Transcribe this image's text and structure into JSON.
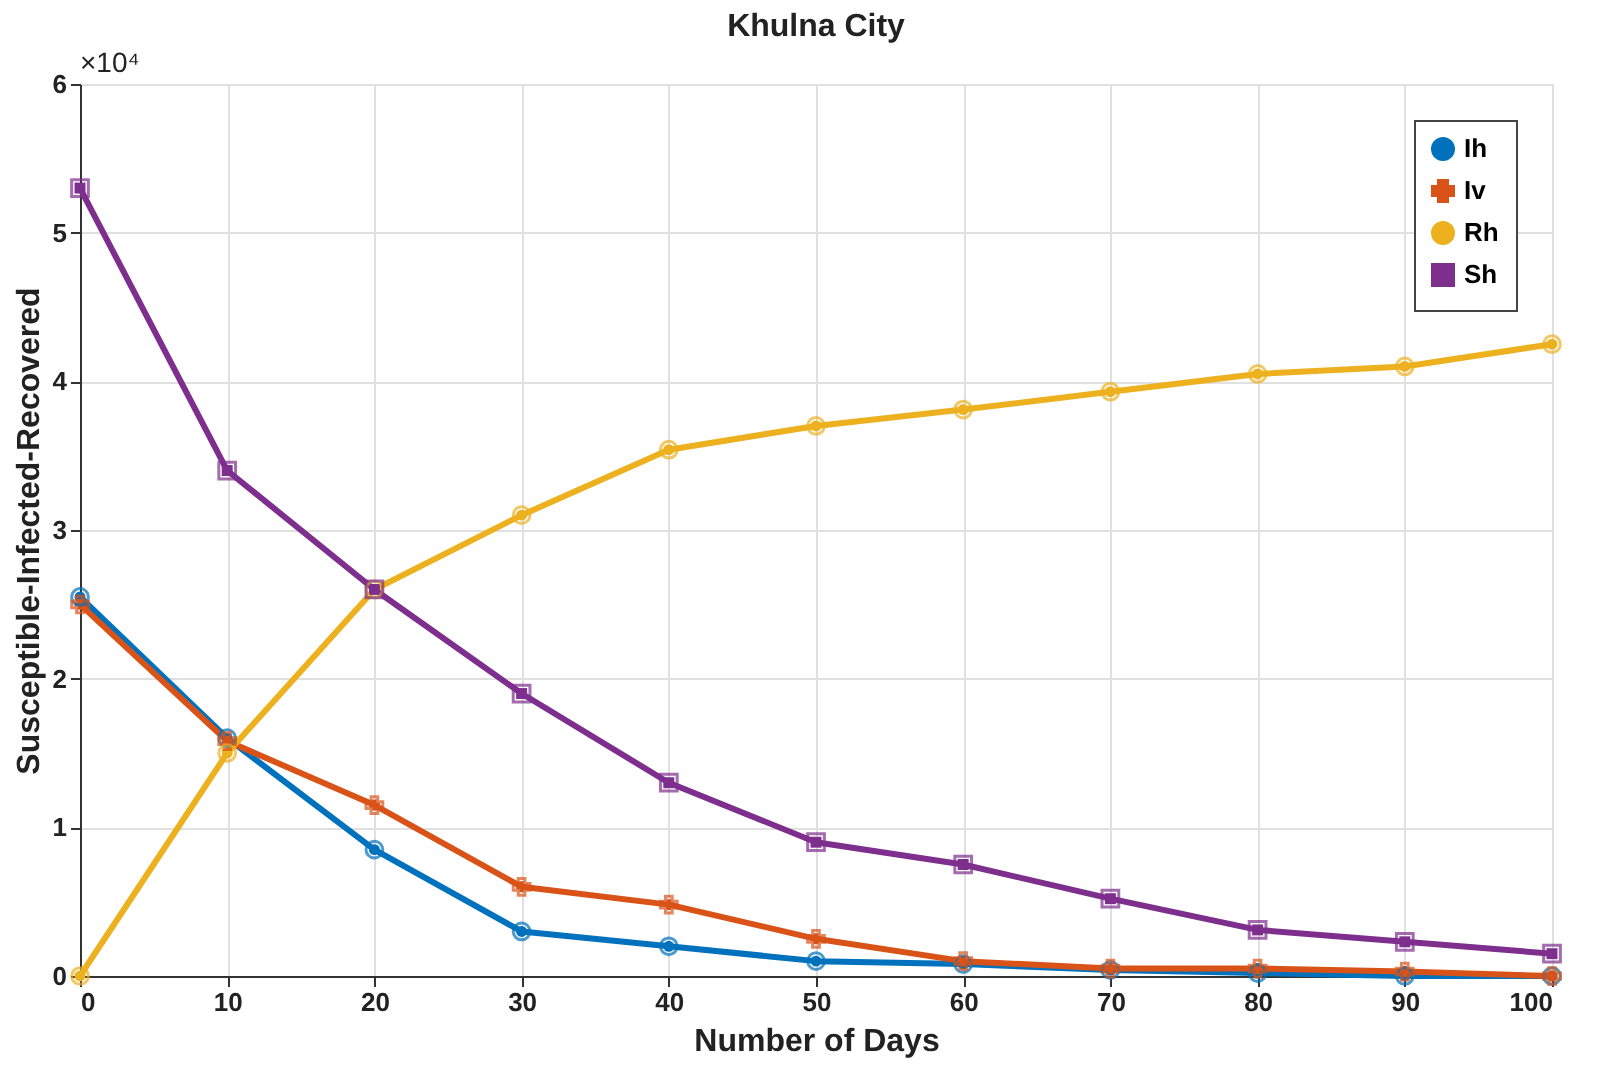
{
  "chart_data": {
    "type": "line",
    "title": "Khulna City",
    "xlabel": "Number of Days",
    "ylabel": "Susceptible-Infected-Recovered",
    "x": [
      0,
      10,
      20,
      30,
      40,
      50,
      60,
      70,
      80,
      90,
      100
    ],
    "series": [
      {
        "name": "Ih",
        "color": "#0072bd",
        "marker": "circle",
        "values": [
          2.55,
          1.6,
          0.85,
          0.3,
          0.2,
          0.1,
          0.08,
          0.04,
          0.02,
          0,
          0
        ]
      },
      {
        "name": "Iv",
        "color": "#d95319",
        "marker": "cross",
        "values": [
          2.5,
          1.58,
          1.15,
          0.6,
          0.48,
          0.25,
          0.1,
          0.05,
          0.05,
          0.03,
          0
        ]
      },
      {
        "name": "Rh",
        "color": "#edb120",
        "marker": "circle",
        "values": [
          0,
          1.5,
          2.6,
          3.1,
          3.54,
          3.7,
          3.81,
          3.93,
          4.05,
          4.1,
          4.25
        ]
      },
      {
        "name": "Sh",
        "color": "#7e2f8e",
        "marker": "square",
        "values": [
          5.3,
          3.4,
          2.6,
          1.9,
          1.3,
          0.9,
          0.75,
          0.52,
          0.31,
          0.23,
          0.15
        ]
      }
    ],
    "xlim": [
      0,
      100
    ],
    "xticks": [
      0,
      10,
      20,
      30,
      40,
      50,
      60,
      70,
      80,
      90,
      100
    ],
    "ylim": [
      0,
      6
    ],
    "yticks": [
      0,
      1,
      2,
      3,
      4,
      5,
      6
    ],
    "annotations": [
      "×10⁴"
    ],
    "grid": true,
    "legend": "top right",
    "line_style": "solid"
  }
}
